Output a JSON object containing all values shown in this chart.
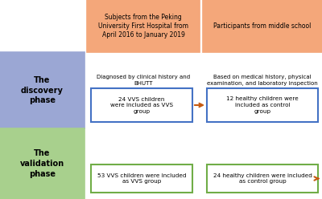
{
  "bg_color": "#ffffff",
  "discovery_box_color": "#9ba7d4",
  "validation_box_color": "#a8d08d",
  "top_box_color": "#f4a77a",
  "inner_box_discovery_color": "#4472c4",
  "inner_box_validation_color": "#70ad47",
  "arrow_color": "#c55a11",
  "title1": "Subjects from the Peking\nUniversity First Hospital from\nApril 2016 to January 2019",
  "title2": "Participants from middle school",
  "discovery_label": "The\ndiscovery\nphase",
  "validation_label": "The\nvalidation\nphase",
  "diag_text": "Diagnosed by clinical history and\nBHUTT",
  "based_text": "Based on medical history, physical\nexamination, and laboratory inspection",
  "box1_text": "24 VVS children\nwere included as VVS\ngroup",
  "box2_text": "12 healthy children were\nincluded as control\ngroup",
  "box3_text": "53 VVS children were included\nas VVS group",
  "box4_text": "24 healthy children were included\nas control group"
}
